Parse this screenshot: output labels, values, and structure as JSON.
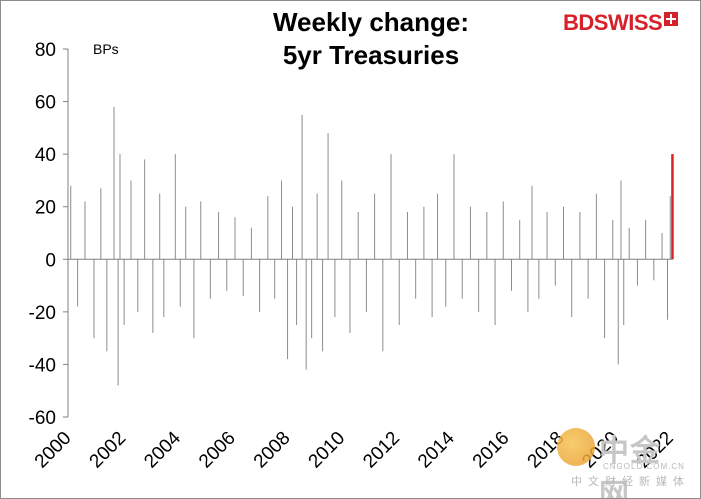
{
  "chart_data": {
    "type": "bar",
    "title": "Weekly change:\n5yr Treasuries",
    "title_lines": [
      "Weekly change:",
      "5yr Treasuries"
    ],
    "ylabel": "BPs",
    "xlabel": "",
    "ylim": [
      -60,
      80
    ],
    "yticks": [
      -60,
      -40,
      -20,
      0,
      20,
      40,
      60,
      80
    ],
    "xlim": [
      2000,
      2022.1
    ],
    "xticks": [
      2000,
      2002,
      2004,
      2006,
      2008,
      2010,
      2012,
      2014,
      2016,
      2018,
      2020,
      2022
    ],
    "xtick_labels": [
      "2000",
      "2002",
      "2004",
      "2006",
      "2008",
      "2010",
      "2012",
      "2014",
      "2016",
      "2018",
      "2020",
      "2022"
    ],
    "grid": false,
    "legend": "none",
    "series": [
      {
        "color": "#8c8c8c",
        "x": [
          2000.1,
          2000.35,
          2000.62,
          2000.95,
          2001.2,
          2001.42,
          2001.68,
          2001.83,
          2001.9,
          2002.05,
          2002.3,
          2002.55,
          2002.8,
          2003.1,
          2003.35,
          2003.5,
          2003.92,
          2004.1,
          2004.3,
          2004.6,
          2004.85,
          2005.2,
          2005.5,
          2005.8,
          2006.1,
          2006.4,
          2006.7,
          2007.0,
          2007.3,
          2007.55,
          2007.8,
          2008.02,
          2008.2,
          2008.35,
          2008.55,
          2008.7,
          2008.9,
          2009.1,
          2009.3,
          2009.5,
          2009.75,
          2010.0,
          2010.3,
          2010.6,
          2010.9,
          2011.2,
          2011.5,
          2011.8,
          2012.1,
          2012.4,
          2012.7,
          2013.0,
          2013.3,
          2013.5,
          2013.8,
          2014.1,
          2014.4,
          2014.7,
          2015.0,
          2015.3,
          2015.6,
          2015.9,
          2016.2,
          2016.5,
          2016.8,
          2016.95,
          2017.2,
          2017.5,
          2017.8,
          2018.1,
          2018.4,
          2018.7,
          2019.0,
          2019.3,
          2019.6,
          2019.9,
          2020.1,
          2020.2,
          2020.3,
          2020.5,
          2020.8,
          2021.1,
          2021.4,
          2021.7,
          2021.9,
          2022.0
        ],
        "values": [
          28,
          -18,
          22,
          -30,
          27,
          -35,
          58,
          -48,
          40,
          -25,
          30,
          -20,
          38,
          -28,
          25,
          -22,
          40,
          -18,
          20,
          -30,
          22,
          -15,
          18,
          -12,
          16,
          -14,
          12,
          -20,
          24,
          -15,
          30,
          -38,
          20,
          -25,
          55,
          -42,
          -30,
          25,
          -35,
          48,
          -22,
          30,
          -28,
          18,
          -20,
          25,
          -35,
          40,
          -25,
          18,
          -15,
          20,
          -22,
          25,
          -18,
          40,
          -15,
          20,
          -20,
          18,
          -25,
          22,
          -12,
          15,
          -20,
          28,
          -15,
          18,
          -10,
          20,
          -22,
          18,
          -15,
          25,
          -30,
          15,
          -40,
          30,
          -25,
          12,
          -10,
          15,
          -8,
          10,
          -23,
          24
        ]
      },
      {
        "color": "#e02020",
        "x": [
          2022.08
        ],
        "values": [
          40
        ]
      }
    ]
  },
  "watermark": {
    "main": "中金网",
    "domain": "CNGOLD.COM.CN",
    "sub": "中文财经新媒体"
  },
  "logo": {
    "text": "BDSWISS"
  }
}
